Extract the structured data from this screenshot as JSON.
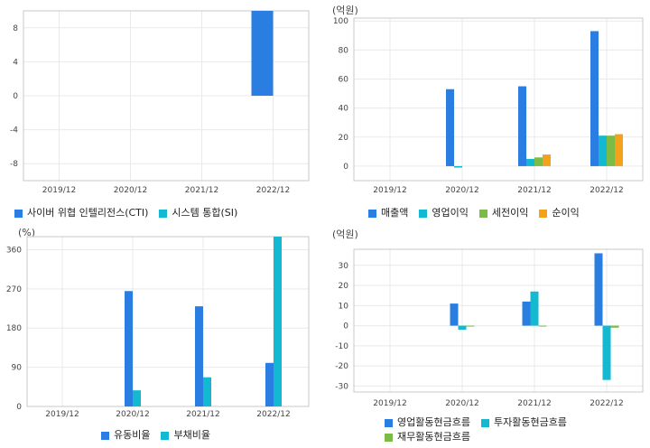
{
  "colors": {
    "blue": "#2a7de1",
    "cyan": "#13b9d0",
    "green": "#7cbb46",
    "orange": "#f4a11c",
    "grid": "#e9e9e9",
    "frame": "#c9c9c9",
    "text": "#444444"
  },
  "chart_data": [
    {
      "type": "bar",
      "unit_label": "",
      "categories": [
        "2019/12",
        "2020/12",
        "2021/12",
        "2022/12"
      ],
      "yticks": [
        8,
        4,
        0,
        -4,
        -8
      ],
      "ylim": [
        -10,
        10
      ],
      "series": [
        {
          "name": "사이버 위협 인텔리전스(CTI)",
          "color": "#2a7de1",
          "values": [
            null,
            null,
            null,
            10
          ]
        },
        {
          "name": "시스템 통합(SI)",
          "color": "#13b9d0",
          "values": [
            null,
            null,
            null,
            null
          ]
        }
      ],
      "legend_rows": [
        [
          "사이버 위협 인텔리전스(CTI)",
          "시스템 통합(SI)"
        ]
      ]
    },
    {
      "type": "bar",
      "unit_label": "(억원)",
      "categories": [
        "2019/12",
        "2020/12",
        "2021/12",
        "2022/12"
      ],
      "yticks": [
        100,
        80,
        60,
        40,
        20,
        0
      ],
      "ylim": [
        -10,
        102
      ],
      "series": [
        {
          "name": "매출액",
          "color": "#2a7de1",
          "values": [
            null,
            53,
            55,
            93
          ]
        },
        {
          "name": "영업이익",
          "color": "#13b9d0",
          "values": [
            null,
            -1,
            5,
            21
          ]
        },
        {
          "name": "세전이익",
          "color": "#7cbb46",
          "values": [
            null,
            null,
            6,
            21
          ]
        },
        {
          "name": "순이익",
          "color": "#f4a11c",
          "values": [
            null,
            null,
            8,
            22
          ]
        }
      ],
      "legend_rows": [
        [
          "매출액",
          "영업이익",
          "세전이익",
          "순이익"
        ]
      ]
    },
    {
      "type": "bar",
      "unit_label": "(%)",
      "categories": [
        "2019/12",
        "2020/12",
        "2021/12",
        "2022/12"
      ],
      "yticks": [
        360,
        270,
        180,
        90,
        0
      ],
      "ylim": [
        0,
        390
      ],
      "series": [
        {
          "name": "유동비율",
          "color": "#2a7de1",
          "values": [
            null,
            265,
            230,
            100
          ]
        },
        {
          "name": "부채비율",
          "color": "#13b9d0",
          "values": [
            null,
            37,
            67,
            390
          ]
        }
      ],
      "legend_rows": [
        [
          "유동비율",
          "부채비율"
        ]
      ]
    },
    {
      "type": "bar",
      "unit_label": "(억원)",
      "categories": [
        "2019/12",
        "2020/12",
        "2021/12",
        "2022/12"
      ],
      "yticks": [
        30,
        20,
        10,
        0,
        -10,
        -20,
        -30
      ],
      "ylim": [
        -33,
        38
      ],
      "series": [
        {
          "name": "영업활동현금흐름",
          "color": "#2a7de1",
          "values": [
            null,
            11,
            12,
            36
          ]
        },
        {
          "name": "투자활동현금흐름",
          "color": "#13b9d0",
          "values": [
            null,
            -2,
            17,
            -27
          ]
        },
        {
          "name": "재무활동현금흐름",
          "color": "#7cbb46",
          "values": [
            null,
            -0.3,
            -0.3,
            -1
          ]
        }
      ],
      "legend_rows": [
        [
          "영업활동현금흐름",
          "투자활동현금흐름"
        ],
        [
          "재무활동현금흐름"
        ]
      ]
    }
  ]
}
